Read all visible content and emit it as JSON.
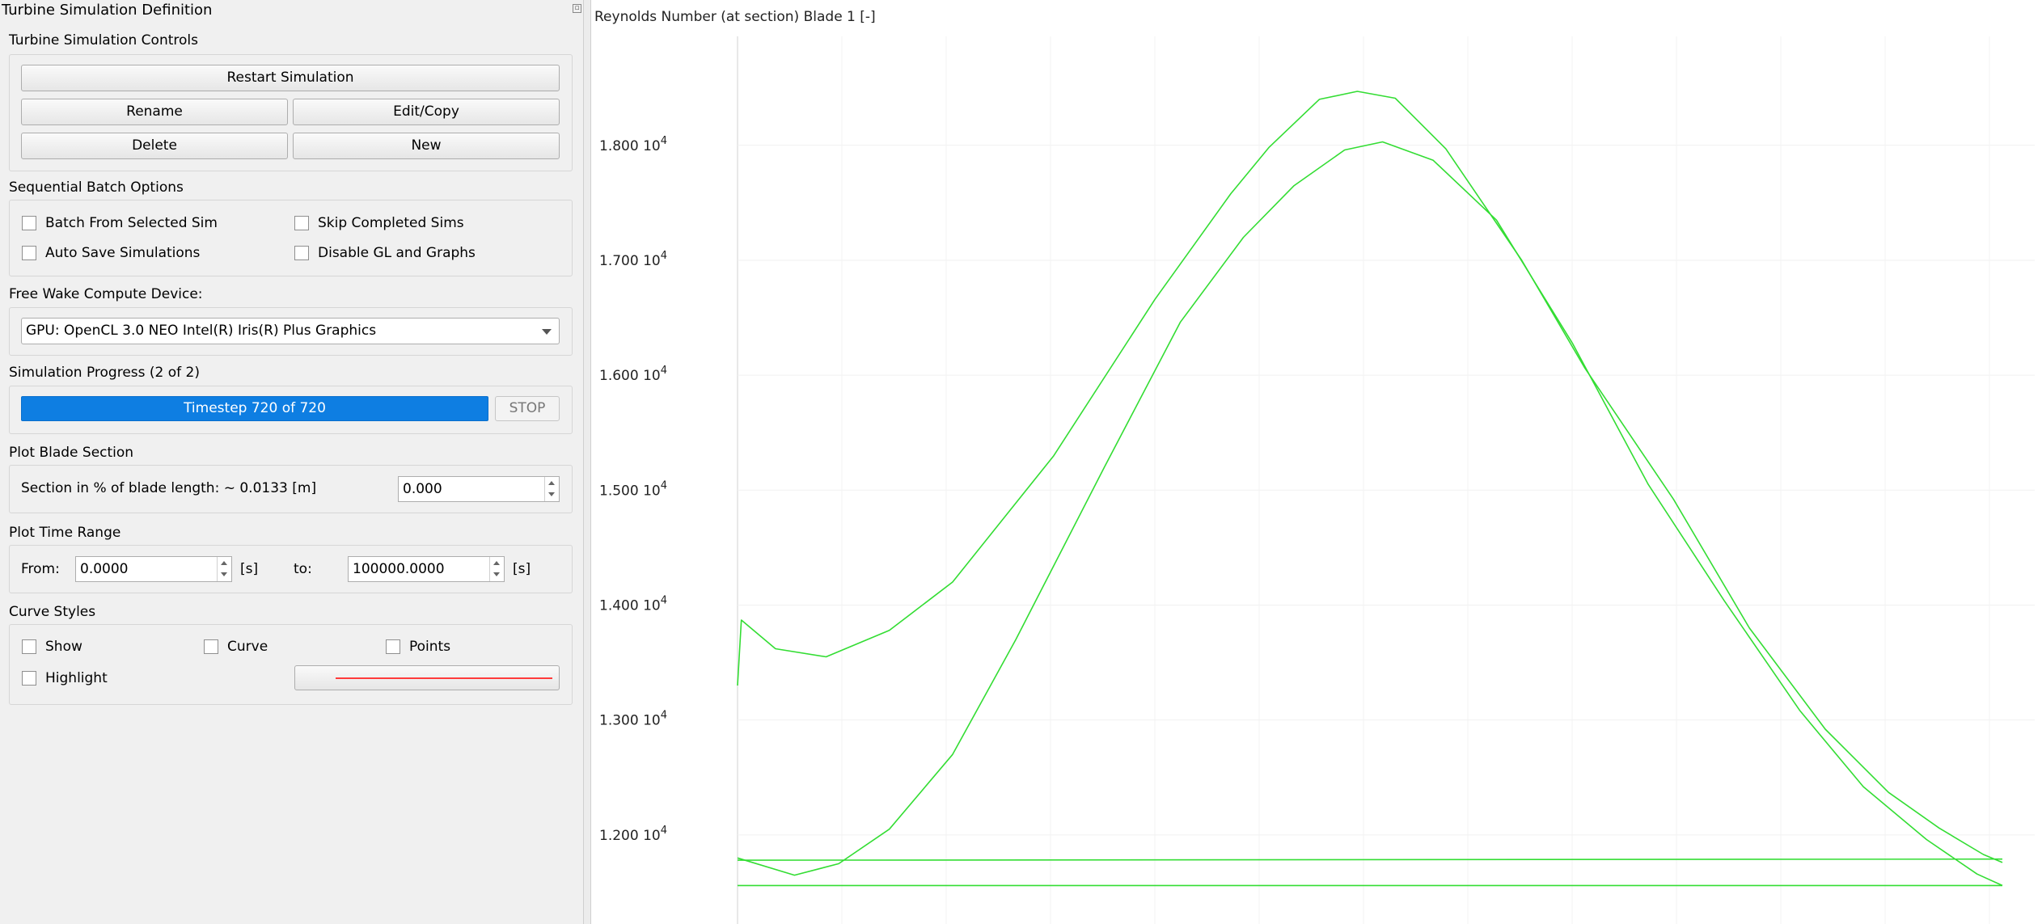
{
  "panel": {
    "title": "Turbine Simulation Definition",
    "controls": {
      "title": "Turbine Simulation Controls",
      "restart": "Restart Simulation",
      "rename": "Rename",
      "edit_copy": "Edit/Copy",
      "delete": "Delete",
      "new": "New"
    },
    "batch": {
      "title": "Sequential Batch Options",
      "batch_from_selected": "Batch From Selected Sim",
      "skip_completed": "Skip Completed Sims",
      "auto_save": "Auto Save Simulations",
      "disable_gl": "Disable GL and Graphs"
    },
    "device": {
      "title": "Free Wake Compute Device:",
      "selected": "GPU: OpenCL 3.0 NEO Intel(R) Iris(R) Plus Graphics"
    },
    "progress": {
      "title": "Simulation Progress (2 of 2)",
      "text": "Timestep 720 of 720",
      "fraction": 1.0,
      "stop": "STOP"
    },
    "blade_section": {
      "title": "Plot Blade Section",
      "label": "Section in % of blade length: ~ 0.0133 [m]",
      "value": "0.000"
    },
    "time_range": {
      "title": "Plot Time Range",
      "from_label": "From:",
      "from_value": "0.0000",
      "from_unit": "[s]",
      "to_label": "to:",
      "to_value": "100000.0000",
      "to_unit": "[s]"
    },
    "curve_styles": {
      "title": "Curve Styles",
      "show": "Show",
      "curve": "Curve",
      "points": "Points",
      "highlight": "Highlight",
      "line_color": "#ff3b3b"
    }
  },
  "chart_data": {
    "type": "line",
    "title": "Reynolds Number (at section) Blade 1 [-]",
    "color": "#33dd33",
    "grid": true,
    "ylim": [
      11300,
      18800
    ],
    "y_ticks": [
      {
        "value": 12000,
        "mantissa": "1.200",
        "base": "10",
        "exp": "4"
      },
      {
        "value": 13000,
        "mantissa": "1.300",
        "base": "10",
        "exp": "4"
      },
      {
        "value": 14000,
        "mantissa": "1.400",
        "base": "10",
        "exp": "4"
      },
      {
        "value": 15000,
        "mantissa": "1.500",
        "base": "10",
        "exp": "4"
      },
      {
        "value": 16000,
        "mantissa": "1.600",
        "base": "10",
        "exp": "4"
      },
      {
        "value": 17000,
        "mantissa": "1.700",
        "base": "10",
        "exp": "4"
      },
      {
        "value": 18000,
        "mantissa": "1.800",
        "base": "10",
        "exp": "4"
      }
    ],
    "xlim": [
      0,
      1
    ],
    "series": [
      {
        "x": [
          0.0,
          0.003,
          0.03,
          0.07,
          0.12,
          0.17,
          0.25,
          0.33,
          0.39,
          0.42,
          0.46,
          0.49,
          0.52,
          0.56,
          0.62,
          0.67,
          0.74,
          0.8,
          0.86,
          0.91,
          0.95,
          0.985,
          1.0
        ],
        "y": [
          13300,
          13870,
          13620,
          13550,
          13780,
          14200,
          15300,
          16660,
          17580,
          17980,
          18400,
          18470,
          18410,
          17970,
          17000,
          16060,
          14920,
          13800,
          12920,
          12370,
          12060,
          11830,
          11760
        ]
      },
      {
        "x": [
          0.0,
          0.045,
          0.08,
          0.12,
          0.17,
          0.22,
          0.29,
          0.35,
          0.4,
          0.44,
          0.48,
          0.51,
          0.55,
          0.6,
          0.66,
          0.72,
          0.78,
          0.84,
          0.89,
          0.94,
          0.98,
          1.0
        ],
        "y": [
          11800,
          11650,
          11750,
          12050,
          12700,
          13700,
          15200,
          16460,
          17200,
          17650,
          17960,
          18030,
          17870,
          17350,
          16280,
          15050,
          14040,
          13080,
          12420,
          11960,
          11660,
          11560
        ]
      },
      {
        "x": [
          0.0,
          1.0
        ],
        "y": [
          11780,
          11790
        ]
      },
      {
        "x": [
          0.0,
          1.0
        ],
        "y": [
          11560,
          11560
        ]
      }
    ]
  }
}
